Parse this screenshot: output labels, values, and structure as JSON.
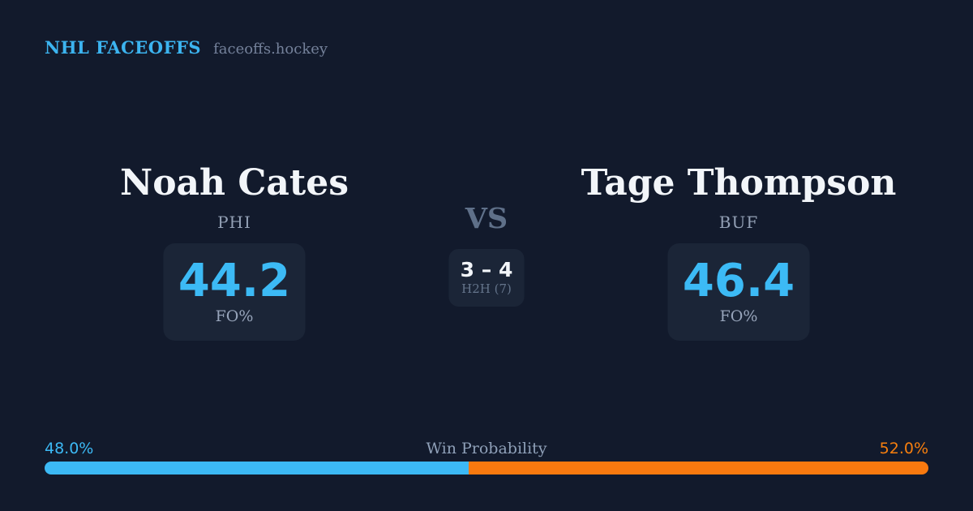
{
  "header": {
    "title": "NHL FACEOFFS",
    "site": "faceoffs.hockey"
  },
  "matchup": {
    "left": {
      "name": "Noah Cates",
      "team": "PHI",
      "stat_value": "44.2",
      "stat_label": "FO%"
    },
    "right": {
      "name": "Tage Thompson",
      "team": "BUF",
      "stat_value": "46.4",
      "stat_label": "FO%"
    },
    "vs_label": "VS",
    "h2h": {
      "score": "3 – 4",
      "label": "H2H (7)"
    }
  },
  "win_probability": {
    "label": "Win Probability",
    "left": {
      "text": "48.0%",
      "value": 48.0,
      "color": "#3CB9F5"
    },
    "right": {
      "text": "52.0%",
      "value": 52.0,
      "color": "#F8790F"
    }
  },
  "colors": {
    "background": "#121A2C",
    "card": "#1B2537",
    "accent_blue": "#3CB9F5",
    "accent_orange": "#F8790F",
    "text_primary": "#F2F5F9",
    "text_muted": "#93A0B5",
    "text_dim": "#5F7089"
  },
  "chart_data": [
    {
      "type": "bar",
      "title": "Win Probability",
      "orientation": "horizontal",
      "stacked": true,
      "series": [
        {
          "name": "Noah Cates (PHI)",
          "values": [
            48.0
          ],
          "color": "#3CB9F5"
        },
        {
          "name": "Tage Thompson (BUF)",
          "values": [
            52.0
          ],
          "color": "#F8790F"
        }
      ],
      "xlim": [
        0,
        100
      ],
      "legend_position": "none",
      "annotations": [
        "48.0%",
        "52.0%"
      ]
    },
    {
      "type": "table",
      "title": "Faceoff percentage (FO%) and head-to-head",
      "categories": [
        "Noah Cates (PHI)",
        "Tage Thompson (BUF)"
      ],
      "values": [
        44.2,
        46.4
      ],
      "h2h_record": "3 – 4",
      "h2h_games": 7
    }
  ]
}
